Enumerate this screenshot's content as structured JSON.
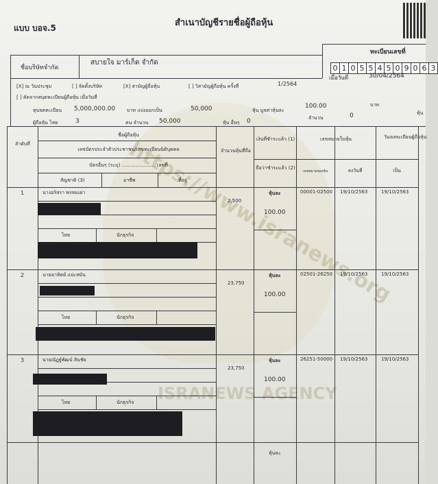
{
  "form_code": "แบบ บอจ.5",
  "title": "สำเนาบัญชีรายชื่อผู้ถือหุ้น",
  "registration": {
    "label": "ทะเบียนเลขที่",
    "digits": [
      "0",
      "1",
      "0",
      "5",
      "5",
      "4",
      "5",
      "0",
      "9",
      "0",
      "6",
      "3"
    ],
    "date_label": "เมื่อวันที่",
    "date": "30/04/2564"
  },
  "company": {
    "label": "ชื่อบริษัทจำกัด",
    "name": "สบายใจ มาร์เก็ต จำกัด"
  },
  "meeting": {
    "opt1": "[X] ณ วันประชุม",
    "opt2": "[ ] จัดตั้งบริษัท",
    "opt3": "[X] สามัญผู้ถือหุ้น",
    "opt4": "[ ] วิสามัญผู้ถือหุ้น ครั้งที่",
    "session": "1/2564",
    "opt5": "[ ] คัดจากสมุดทะเบียนผู้ถือหุ้น เมื่อวันที่"
  },
  "capital": {
    "label": "ทุนจดทะเบียน",
    "value": "5,000,000.00",
    "split_label": "บาท แบ่งออกเป็น",
    "shares": "50,000",
    "par_label": "หุ้น มูลค่าหุ้นละ",
    "par": "100.00",
    "baht": "บาท"
  },
  "holders": {
    "thai_label": "ผู้ถือหุ้น ไทย",
    "thai": "3",
    "count_label": "คน จำนวน",
    "thai_shares": "50,000",
    "other_label": "หุ้น อื่นๆ",
    "other": "0",
    "amount_label": "จำนวน",
    "amount": "0",
    "share_unit": "หุ้น"
  },
  "headers": {
    "no": "ลำดับที่",
    "holder": "ชื่อผู้ถือหุ้น",
    "id": "เลขบัตรประจำตัวประชาชน/เลขทะเบียนนิติบุคคล",
    "other_card": "บัตรอื่นๆ (ระบุ) ...................... เลขที่",
    "nationality": "สัญชาติ (3)",
    "occupation": "อาชีพ",
    "address": "ที่อยู่",
    "shares_held": "จำนวนหุ้นที่ถือ",
    "paid": "เงินที่ชำระแล้ว (1)",
    "deemed_paid": "ถือว่าชำระแล้ว (2)",
    "cert_no": "เลขหมายใบหุ้น",
    "cert_range": "เลขหมายของหุ้น",
    "cert_date": "ลงวันที่",
    "reg_date": "วันลงทะเบียนผู้ถือหุ้น",
    "become": "เป็น"
  },
  "rows": [
    {
      "no": "1",
      "name": "นางอริสรา พรหมเผ่า",
      "shares": "2,500",
      "per_label": "หุ้นละ",
      "per": "100.00",
      "range": "00001-02500",
      "date": "19/10/2563",
      "reg": "19/10/2563",
      "nationality": "ไทย",
      "occupation": "นักธุรกิจ"
    },
    {
      "no": "2",
      "name": "นายอาทิตย์ แปะสมัน",
      "shares": "23,750",
      "per_label": "หุ้นละ",
      "per": "100.00",
      "range": "02501-26250",
      "date": "19/10/2563",
      "reg": "19/10/2563",
      "nationality": "ไทย",
      "occupation": "นักธุรกิจ"
    },
    {
      "no": "3",
      "name": "นายณัฏฐ์พัฒน์ สินชัย",
      "shares": "23,750",
      "per_label": "หุ้นละ",
      "per": "100.00",
      "range": "26251-50000",
      "date": "19/10/2563",
      "reg": "19/10/2563",
      "nationality": "ไทย",
      "occupation": "นักธุรกิจ"
    }
  ],
  "row4_per_label": "หุ้นละ",
  "watermark": {
    "url": "https://www.isranews.org",
    "agency": "ISRANEWS AGENCY"
  }
}
